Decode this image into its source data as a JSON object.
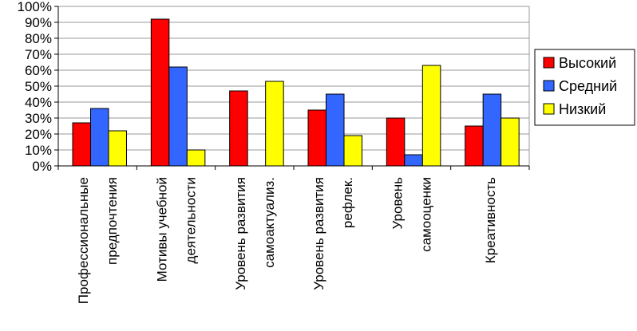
{
  "chart_data": {
    "type": "bar",
    "categories": [
      [
        "Профессиональные",
        "предпочтения"
      ],
      [
        "Мотивы учебной",
        "деятельности"
      ],
      [
        "Уровень развития",
        "самоактуализ."
      ],
      [
        "Уровень развития",
        "рефлек."
      ],
      [
        "Уровень",
        "самооценки"
      ],
      [
        "Креативность"
      ]
    ],
    "series": [
      {
        "name": "Высокий",
        "color": "#ff0000",
        "values": [
          27,
          92,
          47,
          35,
          30,
          25
        ]
      },
      {
        "name": "Средний",
        "color": "#3366ff",
        "values": [
          36,
          62,
          null,
          45,
          7,
          45
        ]
      },
      {
        "name": "Низкий",
        "color": "#ffff00",
        "values": [
          22,
          10,
          53,
          19,
          63,
          30
        ]
      }
    ],
    "y_ticks": [
      "0%",
      "10%",
      "20%",
      "30%",
      "40%",
      "50%",
      "60%",
      "70%",
      "80%",
      "90%",
      "100%"
    ],
    "ylim": [
      0,
      100
    ],
    "grid": true,
    "legend_position": "right"
  }
}
